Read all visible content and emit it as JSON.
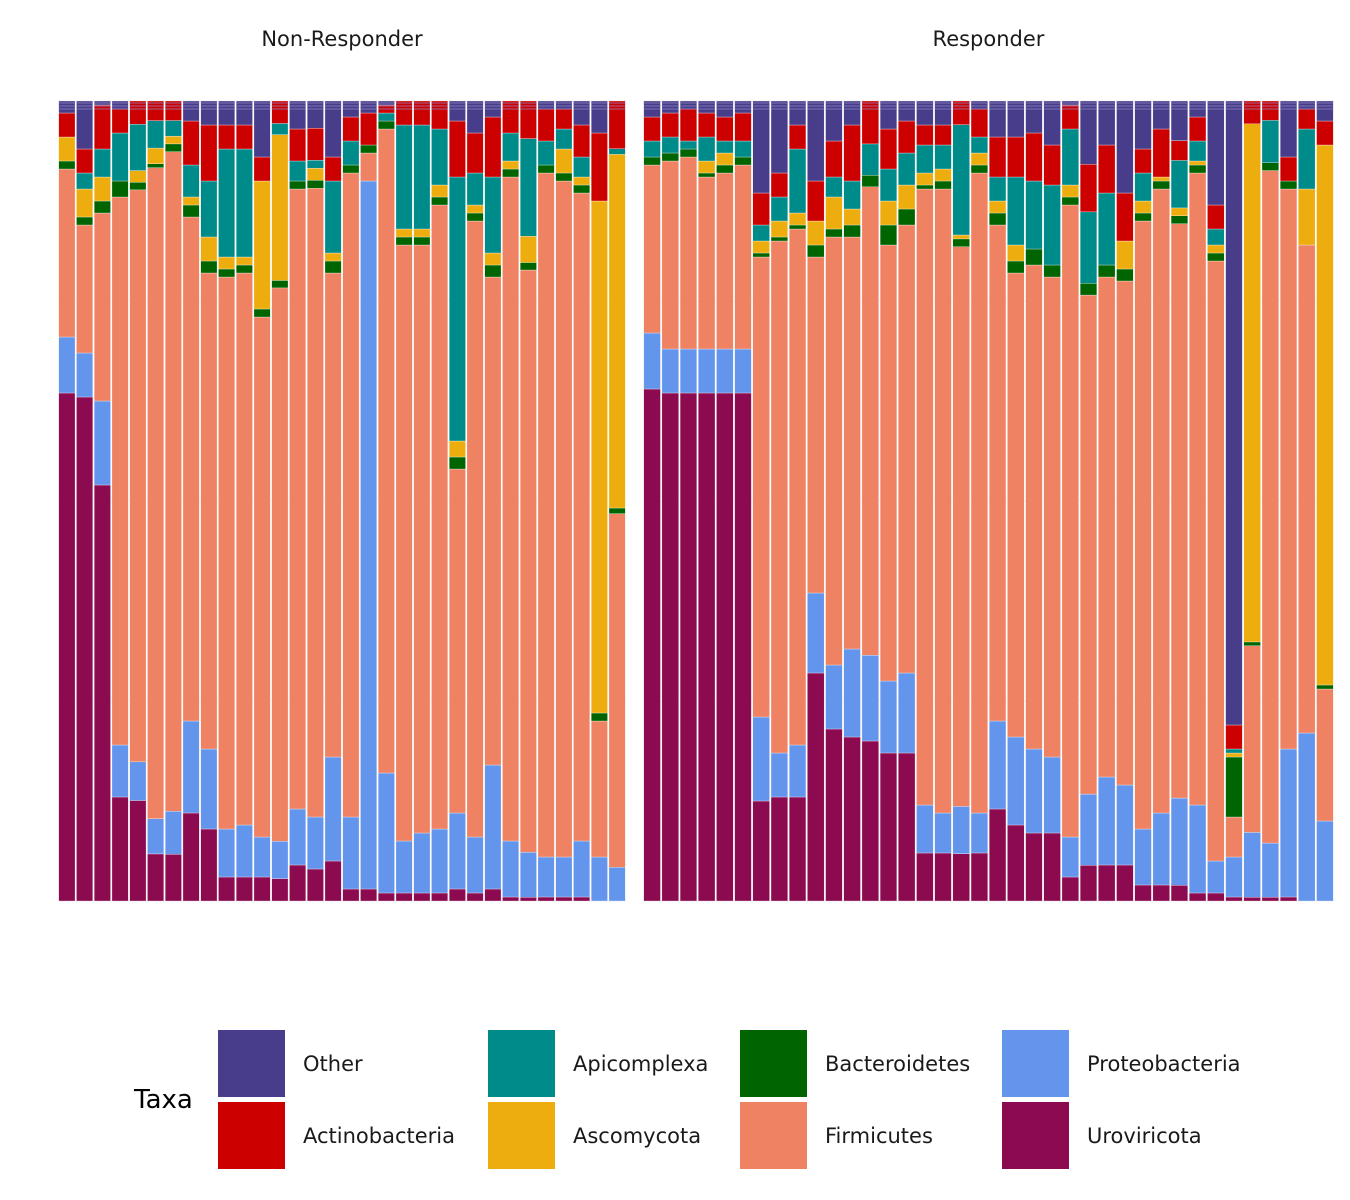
{
  "chart_data": {
    "type": "bar",
    "stacked": true,
    "normalized": true,
    "ylim": [
      0,
      1
    ],
    "grid": true,
    "axis_text": false,
    "legend_position": "bottom",
    "legend_title": "Taxa",
    "stack_order_bottom_to_top": [
      "Uroviricota",
      "Proteobacteria",
      "Firmicutes",
      "Bacteroidetes",
      "Ascomycota",
      "Apicomplexa",
      "Actinobacteria",
      "Other"
    ],
    "legend": [
      {
        "name": "Other",
        "color": "#483D8B"
      },
      {
        "name": "Actinobacteria",
        "color": "#CD0000"
      },
      {
        "name": "Apicomplexa",
        "color": "#008B8B"
      },
      {
        "name": "Ascomycota",
        "color": "#EEAD0E"
      },
      {
        "name": "Bacteroidetes",
        "color": "#006400"
      },
      {
        "name": "Firmicutes",
        "color": "#EE8262"
      },
      {
        "name": "Proteobacteria",
        "color": "#6495ED"
      },
      {
        "name": "Uroviricota",
        "color": "#8B0A50"
      }
    ],
    "facets": [
      {
        "title": "Non-Responder",
        "samples": [
          [
            0.635,
            0.07,
            0.21,
            0.01,
            0.03,
            0.0,
            0.03,
            0.015
          ],
          [
            0.63,
            0.055,
            0.16,
            0.01,
            0.035,
            0.02,
            0.03,
            0.06
          ],
          [
            0.52,
            0.105,
            0.235,
            0.015,
            0.03,
            0.035,
            0.055,
            0.005
          ],
          [
            0.13,
            0.065,
            0.685,
            0.02,
            0.0,
            0.06,
            0.03,
            0.01
          ],
          [
            0.13,
            0.05,
            0.74,
            0.01,
            0.015,
            0.06,
            0.03,
            -0.035
          ],
          [
            0.06,
            0.045,
            0.83,
            0.005,
            0.02,
            0.035,
            0.025,
            -0.02
          ],
          [
            0.06,
            0.055,
            0.845,
            0.01,
            0.01,
            0.02,
            0.025,
            -0.025
          ],
          [
            0.11,
            0.115,
            0.63,
            0.015,
            0.01,
            0.04,
            0.055,
            0.025
          ],
          [
            0.09,
            0.1,
            0.595,
            0.015,
            0.03,
            0.07,
            0.07,
            0.03
          ],
          [
            0.03,
            0.06,
            0.69,
            0.01,
            0.015,
            0.135,
            0.03,
            0.03
          ],
          [
            0.03,
            0.065,
            0.69,
            0.01,
            0.01,
            0.135,
            0.03,
            0.03
          ],
          [
            0.03,
            0.05,
            0.65,
            0.01,
            0.16,
            0.0,
            0.03,
            0.07
          ],
          [
            0.03,
            0.05,
            0.74,
            0.01,
            0.195,
            0.015,
            0.03,
            -0.07
          ],
          [
            0.045,
            0.07,
            0.775,
            0.01,
            0.0,
            0.025,
            0.04,
            0.035
          ],
          [
            0.04,
            0.065,
            0.786,
            0.01,
            0.015,
            0.01,
            0.04,
            0.034
          ],
          [
            0.05,
            0.13,
            0.605,
            0.015,
            0.01,
            0.09,
            0.03,
            0.07
          ],
          [
            0.015,
            0.09,
            0.805,
            0.01,
            0.0,
            0.03,
            0.03,
            0.02
          ],
          [
            0.015,
            0.885,
            0.035,
            0.01,
            0.0,
            0.0,
            0.04,
            0.015
          ],
          [
            0.01,
            0.15,
            0.805,
            0.01,
            0.0,
            0.01,
            0.01,
            0.005
          ],
          [
            0.01,
            0.065,
            0.745,
            0.01,
            0.01,
            0.13,
            0.03,
            0.0
          ],
          [
            0.01,
            0.075,
            0.735,
            0.01,
            0.01,
            0.13,
            0.03,
            0.0
          ],
          [
            0.01,
            0.08,
            0.78,
            0.01,
            0.015,
            0.07,
            0.035,
            0.0
          ],
          [
            0.015,
            0.095,
            0.43,
            0.015,
            0.02,
            0.33,
            0.07,
            0.025
          ],
          [
            0.01,
            0.07,
            0.77,
            0.01,
            0.01,
            0.04,
            0.05,
            0.04
          ],
          [
            0.015,
            0.155,
            0.61,
            0.015,
            0.015,
            0.095,
            0.075,
            0.02
          ],
          [
            0.005,
            0.07,
            0.83,
            0.01,
            0.01,
            0.035,
            0.04,
            0.0
          ],
          [
            0.005,
            0.06,
            0.775,
            0.01,
            0.035,
            0.13,
            0.05,
            -0.065
          ],
          [
            0.005,
            0.05,
            0.855,
            0.01,
            0.0,
            0.03,
            0.04,
            0.01
          ],
          [
            0.005,
            0.05,
            0.845,
            0.01,
            0.03,
            0.025,
            0.025,
            0.01
          ],
          [
            0.005,
            0.07,
            0.81,
            0.01,
            0.01,
            0.025,
            0.04,
            0.03
          ],
          [
            0.0,
            0.055,
            0.17,
            0.01,
            0.64,
            0.0,
            0.085,
            0.04
          ],
          [
            0.0,
            0.06,
            0.63,
            0.01,
            0.63,
            0.01,
            0.085,
            -0.425
          ]
        ]
      },
      {
        "title": "Responder",
        "samples": [
          [
            0.64,
            0.07,
            0.21,
            0.01,
            0.0,
            0.02,
            0.03,
            0.02
          ],
          [
            0.635,
            0.055,
            0.235,
            0.01,
            0.0,
            0.02,
            0.03,
            0.015
          ],
          [
            0.635,
            0.055,
            0.24,
            0.01,
            0.0,
            0.01,
            0.04,
            0.01
          ],
          [
            0.635,
            0.055,
            0.215,
            0.005,
            0.015,
            0.03,
            0.03,
            0.015
          ],
          [
            0.635,
            0.055,
            0.22,
            0.01,
            0.015,
            0.015,
            0.03,
            0.02
          ],
          [
            0.635,
            0.055,
            0.23,
            0.01,
            0.0,
            0.02,
            0.035,
            0.015
          ],
          [
            0.125,
            0.105,
            0.575,
            0.005,
            0.015,
            0.02,
            0.04,
            0.115
          ],
          [
            0.13,
            0.055,
            0.64,
            0.005,
            0.02,
            0.03,
            0.03,
            0.09
          ],
          [
            0.13,
            0.065,
            0.645,
            0.005,
            0.015,
            0.08,
            0.03,
            0.03
          ],
          [
            0.285,
            0.1,
            0.42,
            0.015,
            0.03,
            0.0,
            0.05,
            0.1
          ],
          [
            0.215,
            0.08,
            0.535,
            0.01,
            0.04,
            0.025,
            0.045,
            0.05
          ],
          [
            0.205,
            0.11,
            0.515,
            0.015,
            0.02,
            0.035,
            0.07,
            0.03
          ],
          [
            0.205,
            0.11,
            0.6,
            0.015,
            0.0,
            0.04,
            0.055,
            -0.025
          ],
          [
            0.185,
            0.09,
            0.545,
            0.025,
            0.03,
            0.04,
            0.05,
            0.035
          ],
          [
            0.185,
            0.1,
            0.56,
            0.02,
            0.03,
            0.04,
            0.04,
            0.025
          ],
          [
            0.06,
            0.06,
            0.77,
            0.005,
            0.015,
            0.035,
            0.025,
            0.03
          ],
          [
            0.06,
            0.05,
            0.78,
            0.01,
            0.015,
            0.03,
            0.025,
            0.03
          ],
          [
            0.06,
            0.06,
            0.71,
            0.01,
            0.005,
            0.14,
            0.03,
            -0.015
          ],
          [
            0.06,
            0.05,
            0.8,
            0.01,
            0.015,
            0.02,
            0.035,
            0.01
          ],
          [
            0.115,
            0.11,
            0.62,
            0.015,
            0.015,
            0.03,
            0.05,
            0.045
          ],
          [
            0.095,
            0.11,
            0.58,
            0.015,
            0.02,
            0.085,
            0.05,
            0.045
          ],
          [
            0.085,
            0.105,
            0.605,
            0.02,
            0.0,
            0.085,
            0.06,
            0.04
          ],
          [
            0.085,
            0.095,
            0.6,
            0.015,
            0.0,
            0.1,
            0.05,
            0.055
          ],
          [
            0.03,
            0.05,
            0.79,
            0.01,
            0.015,
            0.07,
            0.03,
            0.005
          ],
          [
            0.045,
            0.09,
            0.63,
            0.015,
            0.0,
            0.09,
            0.06,
            0.08
          ],
          [
            0.045,
            0.11,
            0.625,
            0.015,
            0.0,
            0.09,
            0.06,
            0.055
          ],
          [
            0.045,
            0.1,
            0.63,
            0.015,
            0.035,
            0.0,
            0.06,
            0.115
          ],
          [
            0.02,
            0.07,
            0.76,
            0.01,
            0.015,
            0.035,
            0.03,
            0.06
          ],
          [
            0.02,
            0.09,
            0.78,
            0.01,
            0.005,
            0.0,
            0.06,
            0.035
          ],
          [
            0.02,
            0.11,
            0.725,
            0.01,
            0.01,
            0.06,
            0.025,
            0.05
          ],
          [
            0.01,
            0.11,
            0.79,
            0.01,
            0.005,
            0.025,
            0.03,
            0.02
          ],
          [
            0.01,
            0.04,
            0.75,
            0.01,
            0.01,
            0.02,
            0.03,
            0.13
          ],
          [
            0.005,
            0.05,
            0.05,
            0.075,
            0.005,
            0.005,
            0.03,
            0.78
          ],
          [
            0.005,
            0.085,
            0.245,
            0.005,
            0.68,
            0.0,
            0.03,
            -0.05
          ],
          [
            0.005,
            0.07,
            0.87,
            0.01,
            0.0,
            0.055,
            0.025,
            -0.035
          ],
          [
            0.005,
            0.185,
            0.7,
            0.01,
            0.0,
            0.0,
            0.03,
            0.07
          ],
          [
            0.0,
            0.21,
            0.61,
            0.0,
            0.07,
            0.075,
            0.025,
            0.01
          ],
          [
            0.0,
            0.1,
            0.165,
            0.005,
            0.675,
            0.0,
            0.03,
            0.025
          ]
        ]
      }
    ]
  }
}
